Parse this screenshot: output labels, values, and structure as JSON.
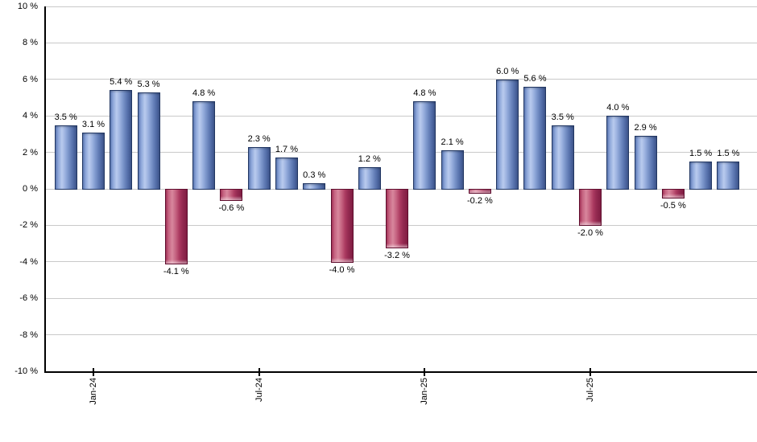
{
  "chart_data": {
    "type": "bar",
    "title": "",
    "unit": "%",
    "values": [
      3.5,
      3.1,
      5.4,
      5.3,
      -4.1,
      4.8,
      -0.6,
      2.3,
      1.7,
      0.3,
      -4.0,
      1.2,
      -3.2,
      4.8,
      2.1,
      -0.2,
      6.0,
      5.6,
      3.5,
      -2.0,
      4.0,
      2.9,
      -0.5,
      1.5,
      1.5
    ],
    "value_label_suffix": " %",
    "x_ticks": [
      {
        "index": 1,
        "label": "Jan-24"
      },
      {
        "index": 7,
        "label": "Jul-24"
      },
      {
        "index": 13,
        "label": "Jan-25"
      },
      {
        "index": 19,
        "label": "Jul-25"
      }
    ],
    "y_ticks": [
      {
        "value": 10,
        "label": "10 %"
      },
      {
        "value": 8,
        "label": "8 %"
      },
      {
        "value": 6,
        "label": "6 %"
      },
      {
        "value": 4,
        "label": "4 %"
      },
      {
        "value": 2,
        "label": "2 %"
      },
      {
        "value": 0,
        "label": "0 %"
      },
      {
        "value": -2,
        "label": "-2 %"
      },
      {
        "value": -4,
        "label": "-4 %"
      },
      {
        "value": -6,
        "label": "-6 %"
      },
      {
        "value": -8,
        "label": "-8 %"
      },
      {
        "value": -10,
        "label": "-10 %"
      }
    ],
    "ylim": [
      -10,
      10
    ],
    "grid": true,
    "legend": "none",
    "colors": {
      "positive_bar_main": "#7d97cc",
      "positive_bar_highlight": "#b9cbee",
      "positive_bar_dark": "#3c5284",
      "positive_bar_border": "#213662",
      "negative_bar_main": "#c4617f",
      "negative_bar_highlight": "#d8879d",
      "negative_bar_dark": "#801d42",
      "negative_bar_border": "#5e0d2d",
      "gridline": "#c9c9c9",
      "axis_line": "#000000",
      "text": "#000000"
    }
  }
}
